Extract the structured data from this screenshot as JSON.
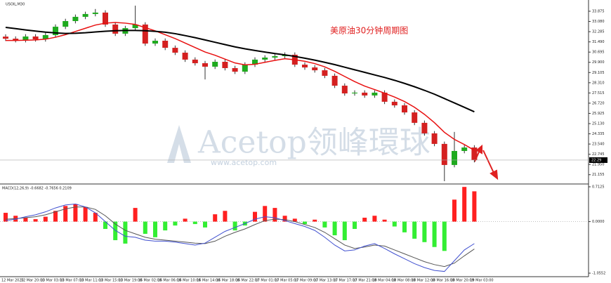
{
  "chart_data": [
    {
      "type": "candlestick",
      "title": "USOIL,M30",
      "annotation": "美原油30分钟周期图",
      "watermark": "Acetop领峰環球",
      "watermark_url": "www.acetop.com",
      "up_color": "#1faa1f",
      "down_color": "#d42020",
      "open": [
        31.9,
        31.74,
        31.63,
        31.91,
        31.69,
        32.02,
        32.67,
        33.11,
        33.44,
        33.66,
        33.77,
        32.84,
        32.13,
        32.56,
        32.84,
        31.36,
        31.58,
        31.03,
        30.65,
        30.11,
        29.83,
        29.56,
        29.94,
        29.45,
        29.17,
        29.72,
        30.11,
        30.27,
        30.38,
        30.49,
        29.72,
        29.5,
        29.28,
        28.85,
        28.08,
        27.48,
        27.54,
        27.32,
        27.54,
        26.83,
        26.55,
        26.0,
        25.19,
        24.37,
        23.55,
        21.91,
        23.0,
        23.27
      ],
      "high": [
        32.08,
        31.92,
        32.09,
        32.09,
        32.2,
        32.85,
        33.29,
        33.62,
        33.84,
        34.05,
        33.95,
        33.02,
        32.74,
        34.31,
        33.02,
        31.76,
        31.76,
        31.21,
        30.83,
        30.29,
        30.01,
        30.12,
        30.12,
        29.63,
        29.9,
        30.29,
        30.45,
        30.56,
        30.67,
        30.67,
        29.9,
        29.68,
        29.46,
        29.03,
        28.26,
        27.72,
        27.72,
        27.72,
        27.72,
        27.01,
        26.73,
        26.18,
        25.37,
        24.55,
        23.73,
        24.48,
        23.45,
        23.45
      ],
      "low": [
        31.56,
        31.45,
        31.45,
        31.51,
        31.51,
        31.84,
        32.49,
        32.93,
        33.26,
        33.48,
        32.66,
        31.95,
        31.95,
        32.38,
        31.18,
        31.18,
        30.85,
        30.47,
        29.93,
        29.65,
        28.57,
        29.38,
        29.27,
        28.99,
        28.99,
        29.54,
        29.93,
        30.09,
        30.2,
        29.54,
        29.32,
        29.1,
        28.67,
        27.9,
        27.3,
        27.3,
        27.14,
        27.14,
        26.65,
        26.37,
        25.82,
        25.01,
        24.19,
        23.37,
        20.65,
        21.73,
        22.82,
        22.11
      ],
      "close": [
        31.74,
        31.63,
        31.91,
        31.69,
        32.02,
        32.67,
        33.11,
        33.44,
        33.66,
        33.77,
        32.84,
        32.13,
        32.56,
        32.84,
        31.36,
        31.58,
        31.03,
        30.65,
        30.11,
        29.83,
        29.56,
        29.94,
        29.45,
        29.17,
        29.72,
        30.11,
        30.27,
        30.38,
        30.49,
        29.72,
        29.5,
        29.28,
        28.85,
        28.08,
        27.48,
        27.54,
        27.32,
        27.54,
        26.83,
        26.55,
        26.0,
        25.19,
        24.37,
        23.55,
        21.91,
        23.0,
        23.27,
        22.29
      ],
      "lines": [
        {
          "color": "#e81010",
          "values": [
            31.6,
            31.6,
            31.62,
            31.64,
            31.7,
            31.85,
            32.05,
            32.3,
            32.55,
            32.8,
            32.95,
            33.0,
            32.95,
            32.85,
            32.6,
            32.35,
            32.05,
            31.75,
            31.4,
            31.05,
            30.7,
            30.45,
            30.15,
            29.85,
            29.7,
            29.75,
            29.9,
            30.05,
            30.18,
            30.1,
            29.98,
            29.8,
            29.55,
            29.2,
            28.8,
            28.4,
            28.05,
            27.78,
            27.5,
            27.2,
            26.85,
            26.4,
            25.85,
            25.2,
            24.45,
            23.9,
            23.5,
            23.05
          ]
        },
        {
          "color": "#000000",
          "values": [
            32.62,
            32.52,
            32.42,
            32.33,
            32.25,
            32.19,
            32.15,
            32.16,
            32.2,
            32.26,
            32.32,
            32.36,
            32.38,
            32.38,
            32.36,
            32.31,
            32.24,
            32.13,
            31.98,
            31.82,
            31.64,
            31.46,
            31.28,
            31.1,
            30.95,
            30.82,
            30.7,
            30.58,
            30.48,
            30.36,
            30.22,
            30.07,
            29.9,
            29.72,
            29.52,
            29.32,
            29.12,
            28.92,
            28.72,
            28.5,
            28.26,
            28.0,
            27.72,
            27.42,
            27.08,
            26.74,
            26.4,
            26.05
          ]
        }
      ],
      "ylim": [
        20.54,
        34.75
      ],
      "yticks": [
        33.875,
        {
          "value": 33.08,
          "label": "33.080"
        },
        32.285,
        {
          "value": 31.49,
          "label": "31.490"
        },
        30.695,
        {
          "value": 29.9,
          "label": "29.900"
        },
        29.105,
        {
          "value": 28.31,
          "label": "28.310"
        },
        27.515,
        {
          "value": 26.72,
          "label": "26.720"
        },
        25.925,
        {
          "value": 25.13,
          "label": "25.130"
        },
        24.335,
        {
          "value": 23.54,
          "label": "23.540"
        },
        22.745,
        {
          "value": 21.95,
          "label": "21.950"
        },
        21.155
      ],
      "x_labels": [
        "12 Mar 2020",
        "12 Mar 20:00",
        "13 Mar 03:00",
        "13 Mar 07:00",
        "13 Mar 11:00",
        "13 Mar 15:00",
        "13 Mar 19:00",
        "16 Mar 02:00",
        "16 Mar 06:00",
        "16 Mar 10:00",
        "16 Mar 14:00",
        "16 Mar 18:00",
        "16 Mar 22:00",
        "17 Mar 01:00",
        "17 Mar 05:00",
        "17 Mar 09:00",
        "17 Mar 13:00",
        "17 Mar 17:00",
        "17 Mar 21:00",
        "18 Mar 04:00",
        "18 Mar 08:00",
        "18 Mar 12:00",
        "18 Mar 16:00",
        "18 Mar 20:00",
        "19 Mar 03:00"
      ]
    },
    {
      "type": "macd",
      "title": "MACD(12,26,9) -0.6682 -0.7656 0.2109",
      "pos_color": "#ff2020",
      "neg_color": "#33ee33",
      "histogram": [
        0.18,
        0.12,
        0.08,
        0.05,
        0.1,
        0.22,
        0.32,
        0.36,
        0.3,
        0.18,
        -0.15,
        -0.38,
        -0.45,
        0.28,
        -0.25,
        -0.32,
        -0.18,
        -0.08,
        0.06,
        -0.05,
        -0.12,
        0.15,
        0.22,
        -0.18,
        -0.08,
        0.2,
        0.32,
        0.28,
        0.12,
        0.06,
        -0.05,
        0.04,
        -0.12,
        -0.28,
        -0.38,
        -0.15,
        0.08,
        0.12,
        0.04,
        -0.1,
        -0.22,
        -0.35,
        -0.42,
        -0.52,
        -0.6,
        0.45,
        0.71,
        0.62
      ],
      "lines": [
        {
          "color": "#555555",
          "values": [
            0.05,
            0.06,
            0.08,
            0.1,
            0.14,
            0.2,
            0.26,
            0.3,
            0.3,
            0.25,
            0.12,
            -0.05,
            -0.18,
            -0.25,
            -0.32,
            -0.36,
            -0.38,
            -0.4,
            -0.42,
            -0.44,
            -0.45,
            -0.4,
            -0.3,
            -0.22,
            -0.15,
            -0.06,
            0.02,
            0.05,
            0.04,
            0.0,
            -0.06,
            -0.12,
            -0.22,
            -0.35,
            -0.48,
            -0.55,
            -0.52,
            -0.48,
            -0.5,
            -0.58,
            -0.66,
            -0.74,
            -0.82,
            -0.88,
            -0.92,
            -0.85,
            -0.7,
            -0.56
          ]
        },
        {
          "color": "#4050d0",
          "values": [
            0.02,
            0.05,
            0.1,
            0.14,
            0.2,
            0.28,
            0.34,
            0.36,
            0.3,
            0.18,
            0.0,
            -0.18,
            -0.3,
            -0.32,
            -0.38,
            -0.4,
            -0.4,
            -0.42,
            -0.45,
            -0.48,
            -0.44,
            -0.32,
            -0.2,
            -0.12,
            -0.04,
            0.05,
            0.1,
            0.08,
            0.02,
            -0.04,
            -0.1,
            -0.18,
            -0.32,
            -0.48,
            -0.6,
            -0.58,
            -0.5,
            -0.45,
            -0.55,
            -0.66,
            -0.76,
            -0.86,
            -0.94,
            -1.0,
            -1.02,
            -0.8,
            -0.58,
            -0.45
          ]
        }
      ],
      "ylim": [
        -1.0552,
        0.7125
      ],
      "yticks": [
        0.7125,
        {
          "value": 0,
          "label": "0.0000"
        },
        -1.0552
      ]
    }
  ]
}
